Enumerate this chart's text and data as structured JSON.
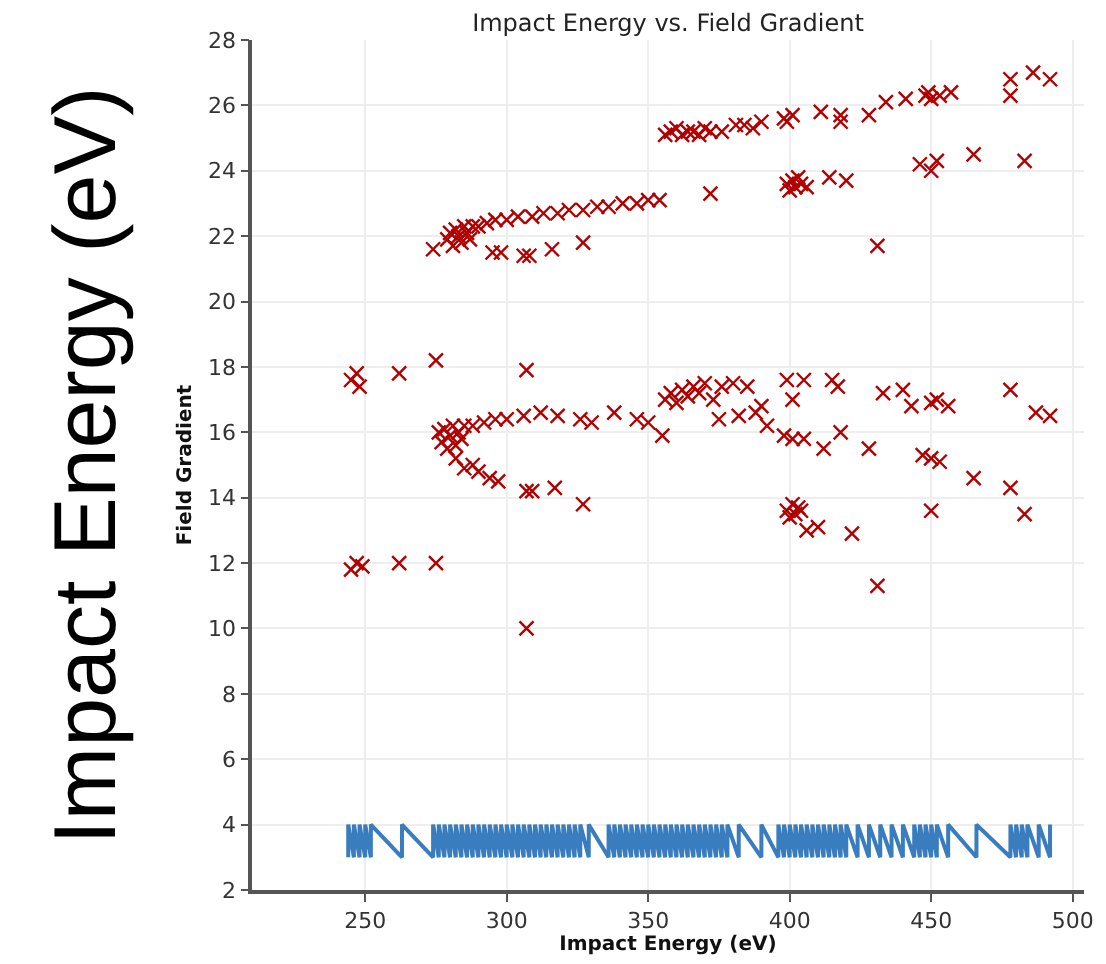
{
  "chart_data": {
    "type": "scatter",
    "title": "Impact Energy vs. Field Gradient",
    "xlabel": "Impact Energy (eV)",
    "ylabel": "Field Gradient",
    "annotations": [
      "Impact Energy (eV)"
    ],
    "xlim": [
      210,
      504
    ],
    "xticks": [
      250,
      300,
      350,
      400,
      450,
      500
    ],
    "ylim": [
      2,
      28
    ],
    "yticks": [
      2,
      4,
      6,
      8,
      10,
      12,
      14,
      16,
      18,
      20,
      22,
      24,
      26,
      28
    ],
    "grid": true,
    "series": [
      {
        "marker": "cross",
        "color": "#b20000",
        "x": [
          274,
          279,
          280,
          281,
          282,
          283,
          284,
          285,
          286,
          287,
          288,
          290,
          293,
          296,
          300,
          304,
          309,
          313,
          318,
          322,
          327,
          332,
          336,
          341,
          346,
          350,
          354,
          295,
          298,
          306,
          308,
          316,
          327,
          372,
          356,
          358,
          360,
          362,
          364,
          366,
          368,
          370,
          372,
          376,
          381,
          384,
          387,
          390,
          398,
          399,
          401,
          411,
          418,
          418,
          428,
          434,
          441,
          448,
          449,
          450,
          453,
          457,
          478,
          478,
          486,
          492,
          399,
          400,
          401,
          402,
          403,
          404,
          406,
          414,
          420,
          431,
          446,
          450,
          452,
          465,
          483,
          245,
          247,
          248,
          262,
          275,
          307,
          276,
          277,
          278,
          279,
          280,
          281,
          282,
          283,
          284,
          285,
          282,
          285,
          288,
          290,
          294,
          297,
          288,
          292,
          296,
          300,
          306,
          312,
          318,
          326,
          330,
          338,
          346,
          350,
          355,
          307,
          309,
          317,
          327,
          307,
          245,
          247,
          249,
          262,
          275,
          356,
          358,
          360,
          362,
          364,
          366,
          368,
          370,
          373,
          376,
          380,
          385,
          390,
          375,
          382,
          388,
          392,
          399,
          401,
          405,
          398,
          401,
          405,
          412,
          415,
          417,
          418,
          428,
          433,
          440,
          443,
          447,
          450,
          452,
          456,
          450,
          453,
          465,
          478,
          478,
          483,
          487,
          492,
          450,
          399,
          400,
          401,
          402,
          403,
          404,
          406,
          410,
          422,
          431
        ],
        "values": [
          21.6,
          21.9,
          22.1,
          21.7,
          22.2,
          22.0,
          21.8,
          22.3,
          22.1,
          21.9,
          22.3,
          22.3,
          22.4,
          22.5,
          22.5,
          22.6,
          22.6,
          22.7,
          22.7,
          22.8,
          22.8,
          22.9,
          22.9,
          23.0,
          23.0,
          23.1,
          23.1,
          21.5,
          21.5,
          21.4,
          21.4,
          21.6,
          21.8,
          23.3,
          25.1,
          25.2,
          25.3,
          25.1,
          25.2,
          25.2,
          25.1,
          25.3,
          25.2,
          25.2,
          25.4,
          25.4,
          25.3,
          25.5,
          25.6,
          25.5,
          25.7,
          25.8,
          25.7,
          25.5,
          25.7,
          26.1,
          26.2,
          26.3,
          26.4,
          26.2,
          26.3,
          26.4,
          26.8,
          26.3,
          27.0,
          26.8,
          23.6,
          23.4,
          23.7,
          23.5,
          23.8,
          23.6,
          23.5,
          23.8,
          23.7,
          21.7,
          24.2,
          24.0,
          24.3,
          24.5,
          24.3,
          17.6,
          17.8,
          17.4,
          17.8,
          18.2,
          17.9,
          16.0,
          15.7,
          16.1,
          15.5,
          15.9,
          16.2,
          15.6,
          16.0,
          15.8,
          16.2,
          15.2,
          14.9,
          15.0,
          14.8,
          14.6,
          14.5,
          16.2,
          16.3,
          16.4,
          16.4,
          16.5,
          16.6,
          16.5,
          16.4,
          16.3,
          16.6,
          16.4,
          16.3,
          15.9,
          14.2,
          14.2,
          14.3,
          13.8,
          10.0,
          11.8,
          12.0,
          11.9,
          12.0,
          12.0,
          17.0,
          17.2,
          16.9,
          17.3,
          17.1,
          17.4,
          17.2,
          17.5,
          17.0,
          17.4,
          17.5,
          17.4,
          16.8,
          16.4,
          16.5,
          16.6,
          16.2,
          17.6,
          17.0,
          17.6,
          15.9,
          15.8,
          15.8,
          15.5,
          17.6,
          17.4,
          16.0,
          15.5,
          17.2,
          17.3,
          16.8,
          15.3,
          16.9,
          17.0,
          16.8,
          15.2,
          15.1,
          14.6,
          14.3,
          17.3,
          13.5,
          16.6,
          16.5,
          13.6,
          13.6,
          13.4,
          13.8,
          13.5,
          13.7,
          13.6,
          13.0,
          13.1,
          12.9,
          11.3
        ]
      },
      {
        "type": "line",
        "marker": "none",
        "color": "#3a7dbf",
        "x": [
          244,
          244,
          246,
          246,
          248,
          248,
          250,
          250,
          252,
          252,
          263,
          263,
          274,
          274,
          276,
          276,
          278,
          278,
          280,
          280,
          282,
          282,
          284,
          284,
          286,
          286,
          288,
          288,
          290,
          290,
          292,
          292,
          294,
          294,
          296,
          296,
          298,
          298,
          300,
          300,
          302,
          302,
          304,
          304,
          306,
          306,
          308,
          308,
          310,
          310,
          312,
          312,
          314,
          314,
          316,
          316,
          318,
          318,
          320,
          320,
          322,
          322,
          324,
          324,
          326,
          326,
          329,
          329,
          336,
          336,
          338,
          338,
          340,
          340,
          342,
          342,
          344,
          344,
          346,
          346,
          348,
          348,
          350,
          350,
          352,
          352,
          354,
          354,
          356,
          356,
          358,
          358,
          360,
          360,
          362,
          362,
          364,
          364,
          366,
          366,
          368,
          368,
          370,
          370,
          372,
          372,
          374,
          374,
          376,
          376,
          378,
          378,
          382,
          382,
          390,
          390,
          396,
          396,
          398,
          398,
          400,
          400,
          402,
          402,
          404,
          404,
          406,
          406,
          408,
          408,
          410,
          410,
          412,
          412,
          414,
          414,
          416,
          416,
          418,
          418,
          420,
          420,
          424,
          424,
          428,
          428,
          432,
          432,
          436,
          436,
          440,
          440,
          444,
          444,
          446,
          446,
          448,
          448,
          450,
          450,
          452,
          452,
          456,
          456,
          466,
          466,
          478,
          478,
          480,
          480,
          482,
          482,
          484,
          484,
          488,
          488,
          492,
          492
        ],
        "values": [
          3,
          4,
          3,
          4,
          3,
          4,
          3,
          4,
          3,
          4,
          3,
          4,
          3,
          4,
          3,
          4,
          3,
          4,
          3,
          4,
          3,
          4,
          3,
          4,
          3,
          4,
          3,
          4,
          3,
          4,
          3,
          4,
          3,
          4,
          3,
          4,
          3,
          4,
          3,
          4,
          3,
          4,
          3,
          4,
          3,
          4,
          3,
          4,
          3,
          4,
          3,
          4,
          3,
          4,
          3,
          4,
          3,
          4,
          3,
          4,
          3,
          4,
          3,
          4,
          3,
          4,
          3,
          4,
          3,
          4,
          3,
          4,
          3,
          4,
          3,
          4,
          3,
          4,
          3,
          4,
          3,
          4,
          3,
          4,
          3,
          4,
          3,
          4,
          3,
          4,
          3,
          4,
          3,
          4,
          3,
          4,
          3,
          4,
          3,
          4,
          3,
          4,
          3,
          4,
          3,
          4,
          3,
          4,
          3,
          4,
          3,
          4,
          3,
          4,
          3,
          4,
          3,
          4,
          3,
          4,
          3,
          4,
          3,
          4,
          3,
          4,
          3,
          4,
          3,
          4,
          3,
          4,
          3,
          4,
          3,
          4,
          3,
          4,
          3,
          4,
          3,
          4,
          3,
          4,
          3,
          4,
          3,
          4,
          3,
          4,
          3,
          4,
          3,
          4,
          3,
          4,
          3,
          4,
          3,
          4,
          3,
          4,
          3,
          4,
          3,
          4,
          3,
          4,
          3,
          4,
          3,
          4,
          3,
          4,
          3,
          4,
          3,
          4
        ]
      }
    ]
  }
}
